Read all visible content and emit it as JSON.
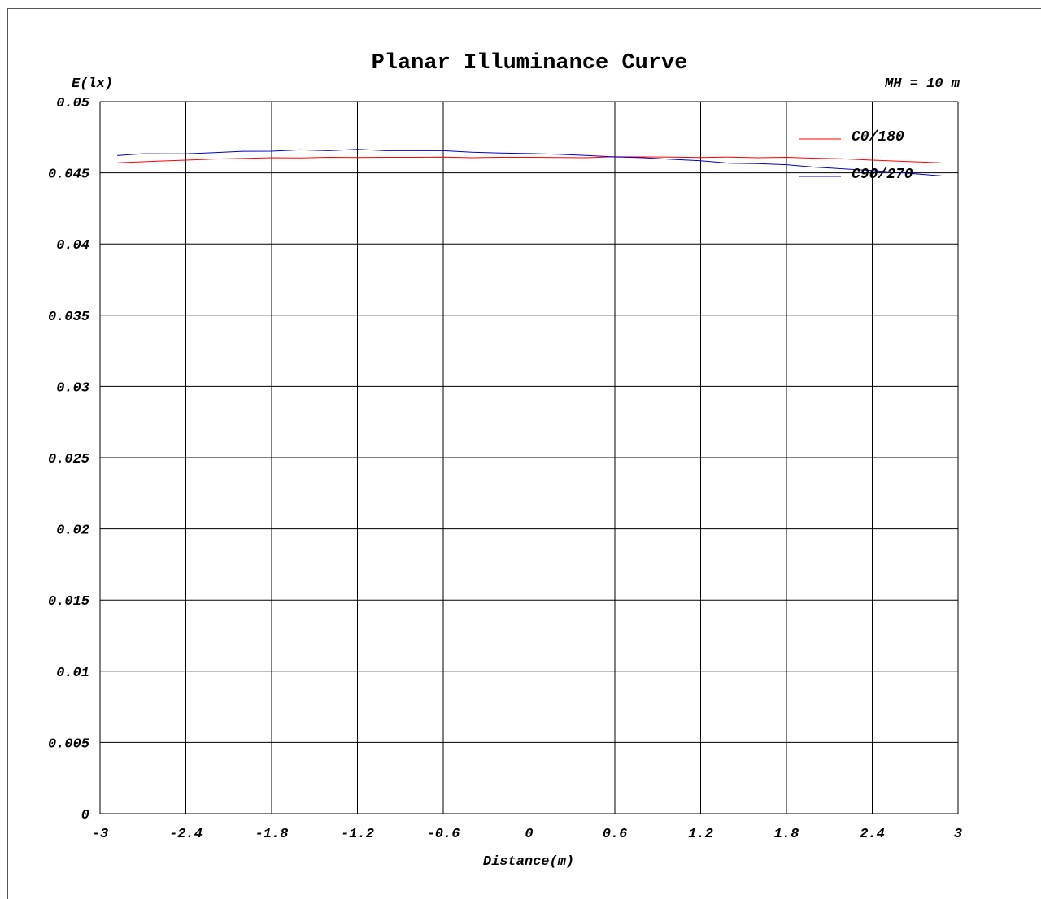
{
  "chart_data": {
    "type": "line",
    "title": "Planar Illuminance Curve",
    "ylabel": "E(lx)",
    "xlabel": "Distance(m)",
    "annotation": "MH = 10 m",
    "xlim": [
      -3,
      3
    ],
    "ylim": [
      0,
      0.05
    ],
    "x_ticks": [
      -3,
      -2.4,
      -1.8,
      -1.2,
      -0.6,
      0,
      0.6,
      1.2,
      1.8,
      2.4,
      3
    ],
    "x_tick_labels": [
      "-3",
      "-2.4",
      "-1.8",
      "-1.2",
      "-0.6",
      "0",
      "0.6",
      "1.2",
      "1.8",
      "2.4",
      "3"
    ],
    "y_ticks": [
      0,
      0.005,
      0.01,
      0.015,
      0.02,
      0.025,
      0.03,
      0.035,
      0.04,
      0.045,
      0.05
    ],
    "y_tick_labels": [
      "0",
      "0.005",
      "0.01",
      "0.015",
      "0.02",
      "0.025",
      "0.03",
      "0.035",
      "0.04",
      "0.045",
      "0.05"
    ],
    "grid": true,
    "legend_position": "top-right",
    "series": [
      {
        "name": "C0/180",
        "color": "#ff0000",
        "x": [
          -2.88,
          -2.6,
          -2.4,
          -2.2,
          -2.0,
          -1.8,
          -1.6,
          -1.4,
          -1.2,
          -1.0,
          -0.8,
          -0.6,
          -0.4,
          -0.2,
          0.0,
          0.2,
          0.4,
          0.6,
          0.8,
          1.0,
          1.2,
          1.4,
          1.6,
          1.8,
          2.0,
          2.2,
          2.4,
          2.6,
          2.88
        ],
        "y": [
          0.04571,
          0.04582,
          0.04589,
          0.04597,
          0.04601,
          0.04606,
          0.04605,
          0.04609,
          0.04608,
          0.04609,
          0.04609,
          0.04611,
          0.04606,
          0.04609,
          0.04609,
          0.04608,
          0.04606,
          0.04613,
          0.04612,
          0.04611,
          0.04608,
          0.04611,
          0.04606,
          0.04609,
          0.04603,
          0.04598,
          0.04589,
          0.04581,
          0.04571
        ]
      },
      {
        "name": "C90/270",
        "color": "#0000cc",
        "x": [
          -2.88,
          -2.7,
          -2.4,
          -2.2,
          -2.0,
          -1.8,
          -1.6,
          -1.4,
          -1.2,
          -1.0,
          -0.8,
          -0.6,
          -0.4,
          -0.2,
          0.0,
          0.2,
          0.4,
          0.6,
          0.8,
          1.0,
          1.2,
          1.4,
          1.6,
          1.8,
          2.0,
          2.2,
          2.4,
          2.6,
          2.88
        ],
        "y": [
          0.04621,
          0.04634,
          0.04633,
          0.04642,
          0.04651,
          0.04652,
          0.04661,
          0.04655,
          0.04665,
          0.04655,
          0.04655,
          0.04655,
          0.04645,
          0.04639,
          0.04635,
          0.0463,
          0.04622,
          0.04612,
          0.04606,
          0.04595,
          0.04585,
          0.04568,
          0.04565,
          0.04557,
          0.0454,
          0.04528,
          0.04516,
          0.04501,
          0.04479
        ]
      }
    ]
  }
}
